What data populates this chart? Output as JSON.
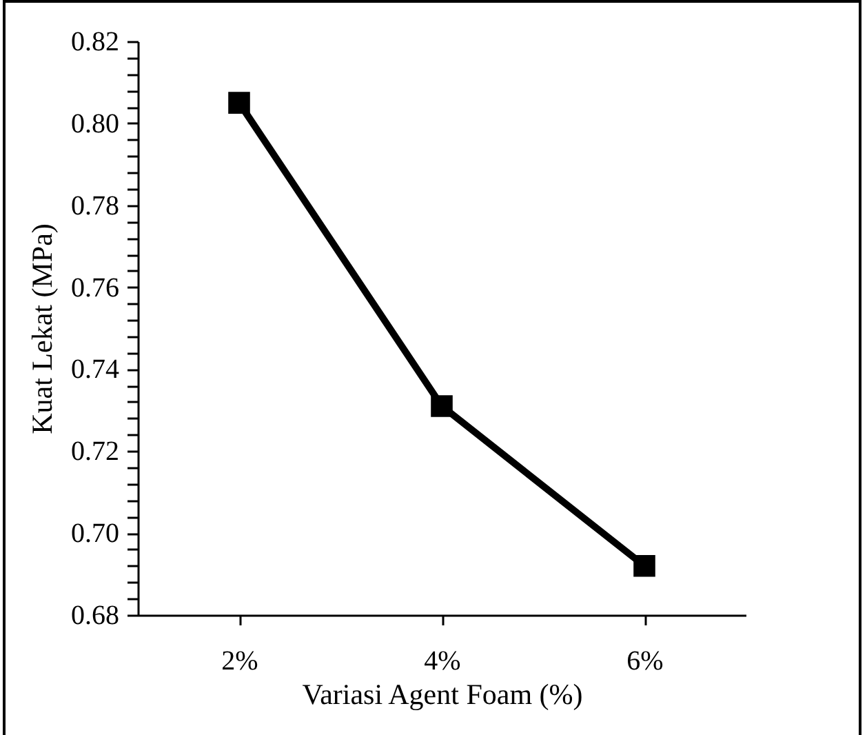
{
  "chart_data": {
    "type": "line",
    "xlabel": "Variasi Agent Foam (%)",
    "ylabel": "Kuat Lekat (MPa)",
    "categories": [
      "2%",
      "4%",
      "6%"
    ],
    "series": [
      {
        "color": "#000000",
        "values": [
          0.805,
          0.731,
          0.692
        ]
      }
    ],
    "ylim": [
      0.68,
      0.82
    ],
    "yticks": [
      {
        "value": 0.68,
        "label": "0.68"
      },
      {
        "value": 0.684,
        "label": null
      },
      {
        "value": 0.688,
        "label": null
      },
      {
        "value": 0.692,
        "label": null
      },
      {
        "value": 0.696,
        "label": null
      },
      {
        "value": 0.7,
        "label": "0.70"
      },
      {
        "value": 0.704,
        "label": null
      },
      {
        "value": 0.708,
        "label": null
      },
      {
        "value": 0.712,
        "label": null
      },
      {
        "value": 0.716,
        "label": null
      },
      {
        "value": 0.72,
        "label": "0.72"
      },
      {
        "value": 0.724,
        "label": null
      },
      {
        "value": 0.728,
        "label": null
      },
      {
        "value": 0.732,
        "label": null
      },
      {
        "value": 0.736,
        "label": null
      },
      {
        "value": 0.74,
        "label": "0.74"
      },
      {
        "value": 0.744,
        "label": null
      },
      {
        "value": 0.748,
        "label": null
      },
      {
        "value": 0.752,
        "label": null
      },
      {
        "value": 0.756,
        "label": null
      },
      {
        "value": 0.76,
        "label": "0.76"
      },
      {
        "value": 0.764,
        "label": null
      },
      {
        "value": 0.768,
        "label": null
      },
      {
        "value": 0.772,
        "label": null
      },
      {
        "value": 0.776,
        "label": null
      },
      {
        "value": 0.78,
        "label": "0.78"
      },
      {
        "value": 0.784,
        "label": null
      },
      {
        "value": 0.788,
        "label": null
      },
      {
        "value": 0.792,
        "label": null
      },
      {
        "value": 0.796,
        "label": null
      },
      {
        "value": 0.8,
        "label": "0.80"
      },
      {
        "value": 0.804,
        "label": null
      },
      {
        "value": 0.808,
        "label": null
      },
      {
        "value": 0.812,
        "label": null
      },
      {
        "value": 0.816,
        "label": null
      },
      {
        "value": 0.82,
        "label": "0.82"
      }
    ],
    "grid": false,
    "legend": false,
    "marker": "square",
    "line_style": "solid"
  }
}
